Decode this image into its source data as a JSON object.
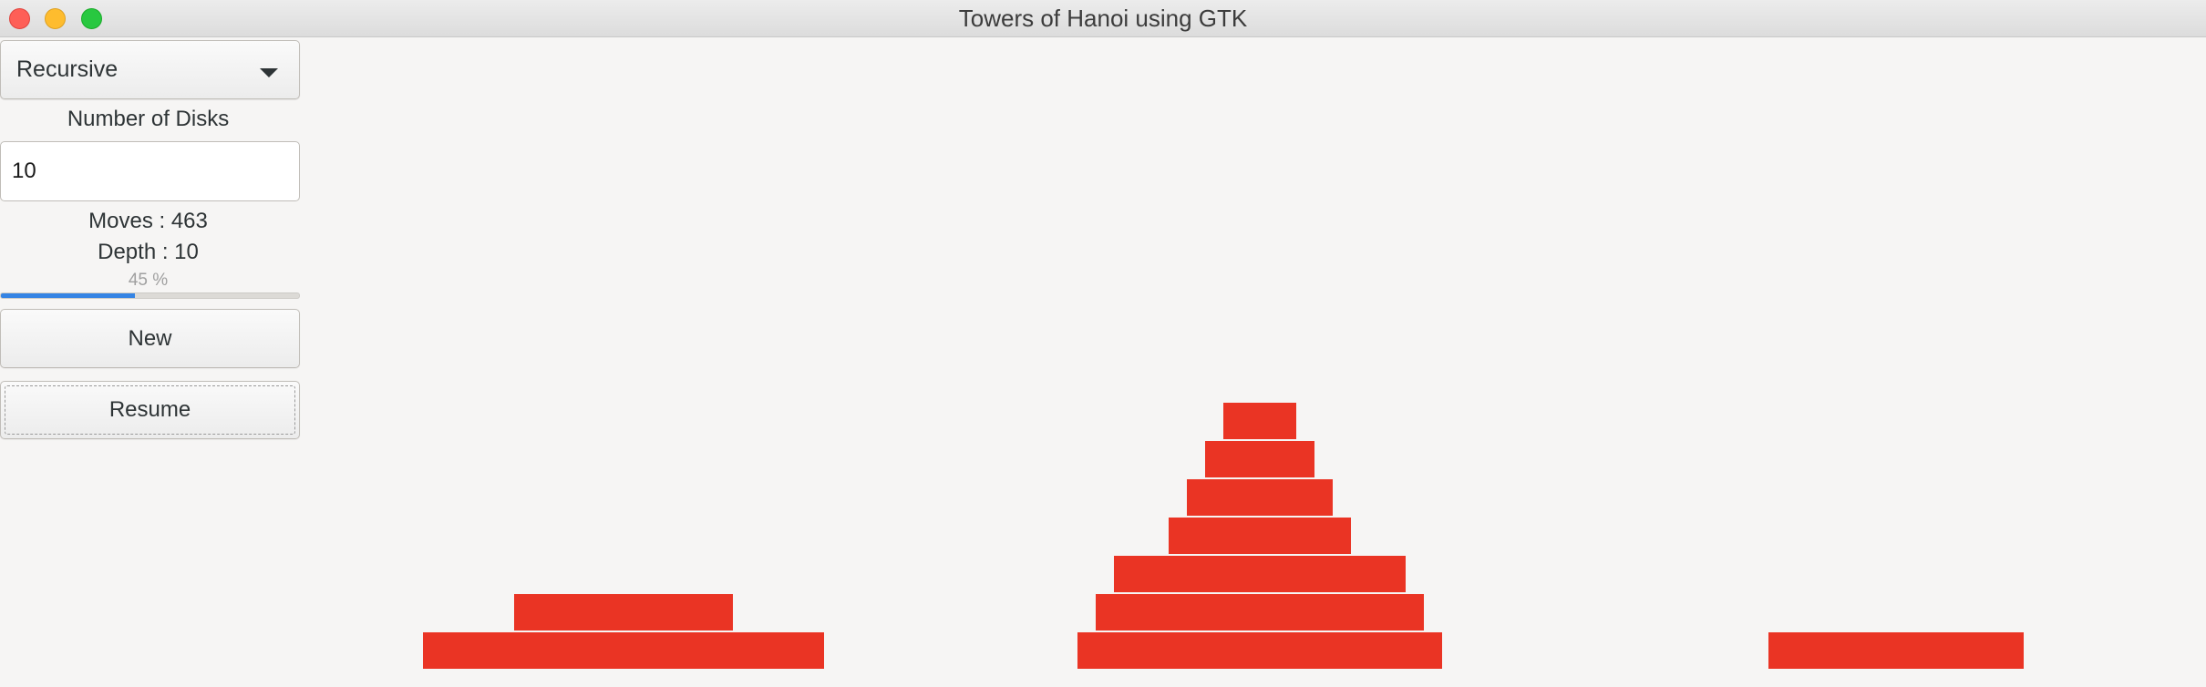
{
  "window": {
    "title": "Towers of Hanoi using GTK"
  },
  "controls": {
    "algorithm": "Recursive",
    "disks_label": "Number of Disks",
    "disks_value": "10",
    "moves_text": "Moves : 463",
    "depth_text": "Depth : 10",
    "progress": {
      "percent": 45,
      "label": "45 %"
    },
    "new_label": "New",
    "resume_label": "Resume"
  },
  "towers": [
    {
      "name": "left",
      "disk_sizes": [
        9,
        4
      ]
    },
    {
      "name": "middle",
      "disk_sizes": [
        8,
        7,
        6,
        3,
        2,
        1,
        0
      ]
    },
    {
      "name": "right",
      "disk_sizes": [
        5
      ]
    }
  ],
  "colors": {
    "disk": "#ea3424",
    "progress_accent": "#3584e4"
  }
}
